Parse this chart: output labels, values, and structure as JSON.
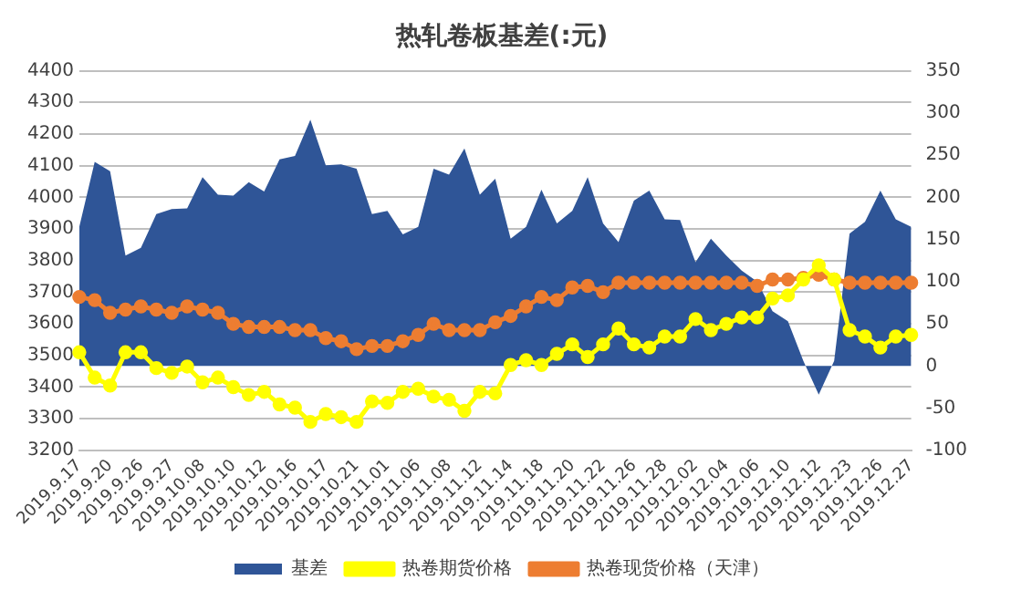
{
  "chart_data": {
    "type": "line",
    "title": "热轧卷板基差(:元)",
    "categories": [
      "2019.9.17",
      null,
      "2019.9.20",
      null,
      "2019.9.26",
      null,
      "2019.9.27",
      null,
      "2019.10.08",
      null,
      "2019.10.10",
      null,
      "2019.10.12",
      null,
      "2019.10.16",
      null,
      "2019.10.17",
      null,
      "2019.10.21",
      null,
      "2019.11.01",
      null,
      "2019.11.06",
      null,
      "2019.11.08",
      null,
      "2019.11.12",
      null,
      "2019.11.14",
      null,
      "2019.11.18",
      null,
      "2019.11.20",
      null,
      "2019.11.22",
      null,
      "2019.11.26",
      null,
      "2019.11.28",
      null,
      "2019.12.02",
      null,
      "2019.12.04",
      null,
      "2019.12.06",
      null,
      "2019.12.10",
      null,
      "2019.12.12",
      null,
      "2019.12.23",
      null,
      "2019.12.26",
      null,
      "2019.12.27"
    ],
    "series": [
      {
        "name": "基差",
        "type": "area",
        "axis": "y2",
        "color": "#2f5597",
        "values": [
          165,
          242,
          231,
          131,
          140,
          180,
          186,
          187,
          224,
          203,
          202,
          218,
          207,
          245,
          249,
          292,
          238,
          239,
          234,
          180,
          184,
          156,
          165,
          234,
          227,
          258,
          203,
          222,
          151,
          165,
          209,
          169,
          184,
          224,
          169,
          147,
          196,
          208,
          174,
          173,
          123,
          151,
          131,
          113,
          100,
          65,
          53,
          6,
          -34,
          6,
          157,
          171,
          208,
          174,
          165
        ]
      },
      {
        "name": "热卷期货价格",
        "type": "line",
        "color": "#ffff00",
        "marker": "circle",
        "values": [
          3510,
          3430,
          3405,
          3510,
          3510,
          3460,
          3445,
          3465,
          3415,
          3430,
          3400,
          3375,
          3385,
          3345,
          3335,
          3290,
          3315,
          3305,
          3290,
          3355,
          3350,
          3385,
          3395,
          3370,
          3360,
          3325,
          3385,
          3380,
          3470,
          3485,
          3470,
          3505,
          3535,
          3495,
          3535,
          3585,
          3535,
          3525,
          3560,
          3560,
          3615,
          3580,
          3600,
          3620,
          3620,
          3680,
          3690,
          3740,
          3785,
          3740,
          3580,
          3560,
          3525,
          3560,
          3565
        ]
      },
      {
        "name": "热卷现货价格（天津）",
        "type": "line",
        "color": "#ed7d31",
        "marker": "circle",
        "values": [
          3685,
          3675,
          3635,
          3645,
          3655,
          3645,
          3635,
          3655,
          3645,
          3635,
          3600,
          3590,
          3590,
          3590,
          3580,
          3580,
          3555,
          3545,
          3520,
          3530,
          3530,
          3545,
          3565,
          3600,
          3580,
          3580,
          3580,
          3605,
          3625,
          3655,
          3685,
          3675,
          3715,
          3720,
          3700,
          3730,
          3730,
          3730,
          3730,
          3730,
          3730,
          3730,
          3730,
          3730,
          3720,
          3740,
          3740,
          3745,
          3755,
          3740,
          3730,
          3730,
          3730,
          3730,
          3730
        ]
      }
    ],
    "ylim": [
      3200,
      4400
    ],
    "yticks": [
      3200,
      3300,
      3400,
      3500,
      3600,
      3700,
      3800,
      3900,
      4000,
      4100,
      4200,
      4300,
      4400
    ],
    "y2lim": [
      -100,
      350
    ],
    "y2ticks": [
      -100,
      -50,
      0,
      50,
      100,
      150,
      200,
      250,
      300,
      350
    ],
    "grid": "y",
    "legend": "bottom"
  }
}
